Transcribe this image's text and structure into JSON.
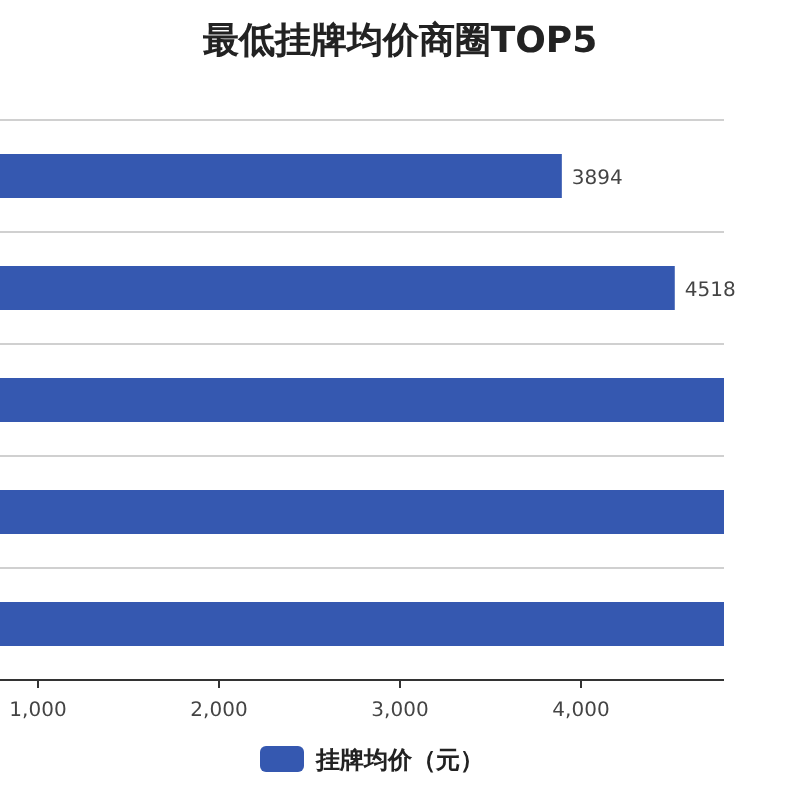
{
  "chart_data": {
    "type": "bar",
    "orientation": "horizontal",
    "title": "最低挂牌均价商圈TOP5",
    "categories": [
      null,
      null,
      null,
      null,
      null
    ],
    "series": [
      {
        "name": "挂牌均价（元）",
        "color": "#3558b0",
        "values": [
          3894,
          4518,
          4790,
          4790,
          4790
        ],
        "value_labels": [
          "3894",
          "4518",
          null,
          null,
          null
        ]
      }
    ],
    "xlim": [
      790,
      4790
    ],
    "xticks": [
      {
        "value": 1000,
        "label": "1,000"
      },
      {
        "value": 2000,
        "label": "2,000"
      },
      {
        "value": 3000,
        "label": "3,000"
      },
      {
        "value": 4000,
        "label": "4,000"
      }
    ],
    "grid": "y",
    "legend": "bottom"
  }
}
